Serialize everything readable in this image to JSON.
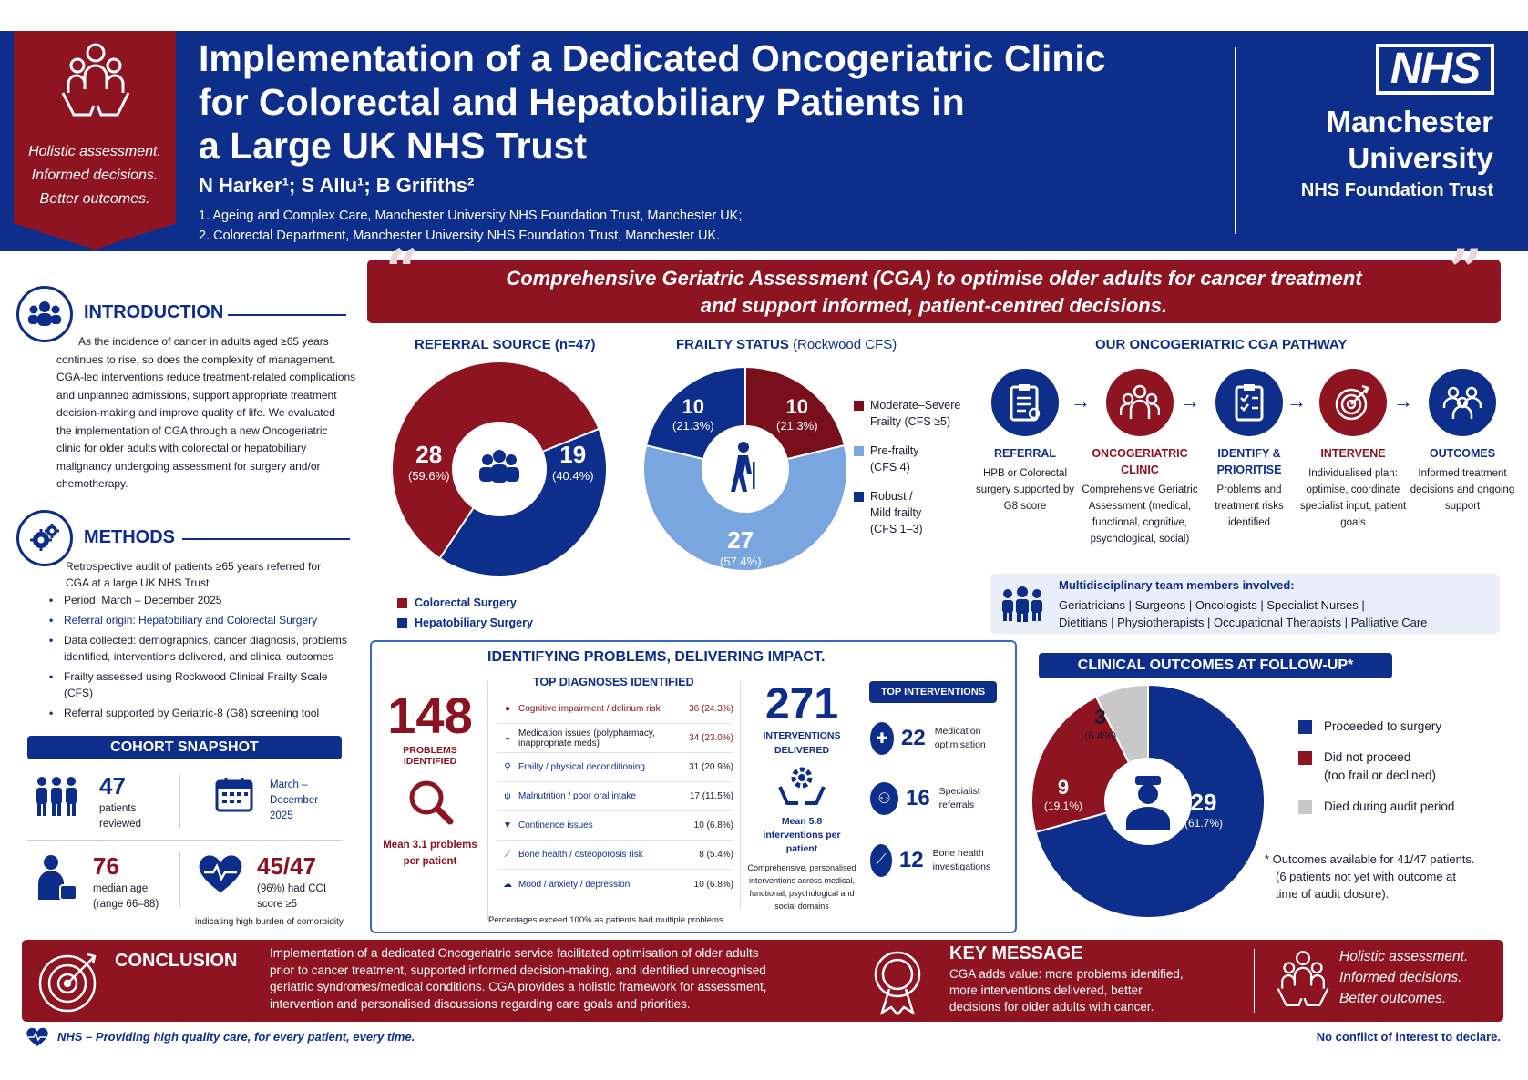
{
  "header": {
    "badge_lines": [
      "Holistic assessment.",
      "Informed decisions.",
      "Better outcomes."
    ],
    "title_lines": [
      "Implementation of a Dedicated Oncogeriatric Clinic",
      "for Colorectal and Hepatobiliary Patients in",
      "a Large UK NHS Trust"
    ],
    "authors": "N Harker¹; S Allu¹; B Grifiths²",
    "affiliations": [
      "1.   Ageing and Complex Care, Manchester University NHS Foundation Trust, Manchester UK;",
      "2.   Colorectal Department, Manchester University NHS Foundation Trust, Manchester UK."
    ],
    "logo_text": "NHS",
    "trust_line1": "Manchester",
    "trust_line2": "University",
    "trust_line3": "NHS Foundation Trust"
  },
  "quote": {
    "line1": "Comprehensive Geriatric Assessment (CGA) to optimise older adults for cancer treatment",
    "line2": "and support informed, patient-centred decisions."
  },
  "introduction": {
    "heading": "INTRODUCTION",
    "lines": [
      "As the incidence of cancer in adults aged ≥65 years",
      "continues to rise, so does the complexity of management.",
      "CGA-led interventions reduce treatment-related complications",
      "and unplanned admissions, support appropriate treatment",
      "decision-making and improve quality of life. We evaluated",
      "the implementation of CGA through a new Oncogeriatric",
      "clinic for older adults with colorectal or hepatobiliary",
      "malignancy undergoing assessment for surgery and/or",
      "chemotherapy."
    ]
  },
  "methods": {
    "heading": "METHODS",
    "intro_lines": [
      "Retrospective audit of patients ≥65 years referred for",
      "CGA at a large UK NHS Trust"
    ],
    "bullets": [
      {
        "text": "Period: March – December 2025",
        "highlight": false
      },
      {
        "text": "Referral origin: Hepatobiliary and Colorectal Surgery",
        "highlight": true
      },
      {
        "text": "Data collected: demographics, cancer diagnosis, problems identified, interventions delivered, and clinical outcomes",
        "highlight": false
      },
      {
        "text": "Frailty assessed using Rockwood Clinical Frailty Scale (CFS)",
        "highlight": false
      },
      {
        "text": "Referral supported by Geriatric-8 (G8) screening tool",
        "highlight": false
      }
    ]
  },
  "cohort": {
    "heading": "COHORT SNAPSHOT",
    "patients_value": "47",
    "patients_label": "patients reviewed",
    "period_label": "March – December 2025",
    "age_value": "76",
    "age_label": "median age (range 66–88)",
    "cci_value": "45/47",
    "cci_label": "(96%) had CCI score ≥5",
    "cci_note": "indicating high burden of comorbidity"
  },
  "referral": {
    "heading": "REFERRAL SOURCE (n=47)",
    "legend": [
      "Colorectal Surgery",
      "Hepatobiliary Surgery"
    ],
    "labels": [
      {
        "value": "28",
        "pct": "(59.6%)"
      },
      {
        "value": "19",
        "pct": "(40.4%)"
      }
    ]
  },
  "frailty": {
    "heading": "FRAILTY STATUS",
    "heading_sub": "(Rockwood CFS)",
    "legend": [
      {
        "line1": "Moderate–Severe",
        "line2": "Frailty (CFS ≥5)",
        "line3": ""
      },
      {
        "line1": "Pre-frailty",
        "line2": "(CFS 4)",
        "line3": ""
      },
      {
        "line1": "Robust /",
        "line2": "Mild frailty",
        "line3": "(CFS 1–3)"
      }
    ],
    "labels": [
      {
        "value": "10",
        "pct": "(21.3%)"
      },
      {
        "value": "27",
        "pct": "(57.4%)"
      },
      {
        "value": "10",
        "pct": "(21.3%)"
      }
    ]
  },
  "pathway": {
    "heading": "OUR ONCOGERIATRIC CGA PATHWAY",
    "steps": [
      {
        "label": "REFERRAL",
        "desc": "HPB or Colorectal surgery supported by G8 score"
      },
      {
        "label": "ONCOGERIATRIC CLINIC",
        "desc": "Comprehensive Geriatric Assessment (medical, functional, cognitive, psychological, social)"
      },
      {
        "label": "IDENTIFY & PRIORITISE",
        "desc": "Problems and treatment risks identified"
      },
      {
        "label": "INTERVENE",
        "desc": "Individualised plan: optimise, coordinate specialist input, patient goals"
      },
      {
        "label": "OUTCOMES",
        "desc": "Informed treatment decisions and ongoing support"
      }
    ],
    "mdt_title": "Multidisciplinary team members involved:",
    "mdt_line1": "Geriatricians | Surgeons | Oncologists | Specialist Nurses |",
    "mdt_line2": "Dietitians | Physiotherapists | Occupational Therapists | Palliative Care"
  },
  "impact": {
    "heading": "IDENTIFYING PROBLEMS, DELIVERING IMPACT.",
    "problems_value": "148",
    "problems_label": "PROBLEMS IDENTIFIED",
    "problems_mean": "Mean 3.1 problems per patient",
    "diag_heading": "TOP DIAGNOSES IDENTIFIED",
    "diagnoses": [
      {
        "name": "Cognitive impairment / delirium risk",
        "count": "36",
        "pct": "(24.3%)"
      },
      {
        "name": "Medication issues (polypharmacy, inappropriate meds)",
        "count": "34",
        "pct": "(23.0%)"
      },
      {
        "name": "Frailty / physical deconditioning",
        "count": "31",
        "pct": "(20.9%)"
      },
      {
        "name": "Malnutrition / poor oral intake",
        "count": "17",
        "pct": "(11.5%)"
      },
      {
        "name": "Continence issues",
        "count": "10",
        "pct": "(6.8%)"
      },
      {
        "name": "Bone health / osteoporosis risk",
        "count": "8",
        "pct": "(5.4%)"
      },
      {
        "name": "Mood / anxiety / depression",
        "count": "10",
        "pct": "(6.8%)"
      }
    ],
    "interventions_value": "271",
    "interventions_label": "INTERVENTIONS DELIVERED",
    "interventions_mean": "Mean 5.8 interventions per patient",
    "interventions_note": "Comprehensive, personalised interventions across medical, functional, psychological and social domains",
    "top_int_heading": "TOP INTERVENTIONS",
    "top_interventions": [
      {
        "value": "22",
        "label": "Medication optimisation"
      },
      {
        "value": "16",
        "label": "Specialist referrals"
      },
      {
        "value": "12",
        "label": "Bone health investigations"
      }
    ],
    "footnote": "Percentages exceed 100% as patients had multiple problems."
  },
  "outcomes": {
    "heading": "CLINICAL OUTCOMES AT FOLLOW-UP*",
    "labels": [
      {
        "value": "29",
        "pct": "(61.7%)"
      },
      {
        "value": "9",
        "pct": "(19.1%)"
      },
      {
        "value": "3",
        "pct": "(6.4%)"
      }
    ],
    "legend": [
      {
        "line1": "Proceeded to surgery",
        "line2": ""
      },
      {
        "line1": "Did not proceed",
        "line2": "(too frail or declined)"
      },
      {
        "line1": "Died during audit period",
        "line2": ""
      }
    ],
    "note_lines": [
      "* Outcomes available for 41/47 patients.",
      "(6 patients not yet with outcome at",
      "time of audit closure)."
    ]
  },
  "conclusion": {
    "heading": "CONCLUSION",
    "lines": [
      "Implementation of a dedicated Oncogeriatric service facilitated optimisation of older adults",
      "prior to cancer treatment, supported informed decision-making, and identified unrecognised",
      "geriatric syndromes/medical conditions. CGA provides a holistic framework for assessment,",
      "intervention and personalised discussions regarding care goals and priorities."
    ],
    "key_heading": "KEY MESSAGE",
    "key_lines": [
      "CGA adds value: more problems identified,",
      "more interventions delivered, better",
      "decisions for older adults with cancer."
    ],
    "tag_lines": [
      "Holistic assessment.",
      "Informed decisions.",
      "Better outcomes."
    ]
  },
  "footer": {
    "left": "NHS – Providing high quality care, for every patient, every time.",
    "right": "No conflict of interest to declare."
  },
  "chart_data": [
    {
      "type": "pie",
      "title": "REFERRAL SOURCE (n=47)",
      "categories": [
        "Colorectal Surgery",
        "Hepatobiliary Surgery"
      ],
      "values": [
        28,
        19
      ],
      "colors": [
        "#8e1421",
        "#0d2e8a"
      ]
    },
    {
      "type": "pie",
      "title": "FRAILTY STATUS (Rockwood CFS)",
      "categories": [
        "Moderate–Severe Frailty (CFS ≥5)",
        "Pre-frailty (CFS 4)",
        "Robust / Mild frailty (CFS 1–3)"
      ],
      "values": [
        10,
        27,
        10
      ],
      "colors": [
        "#7a0f1c",
        "#7aa6e0",
        "#0d2e8a"
      ]
    },
    {
      "type": "pie",
      "title": "CLINICAL OUTCOMES AT FOLLOW-UP*",
      "categories": [
        "Proceeded to surgery",
        "Did not proceed (too frail or declined)",
        "Died during audit period"
      ],
      "values": [
        29,
        9,
        3
      ],
      "colors": [
        "#0d2e8a",
        "#8e1421",
        "#c8c8c8"
      ]
    }
  ]
}
